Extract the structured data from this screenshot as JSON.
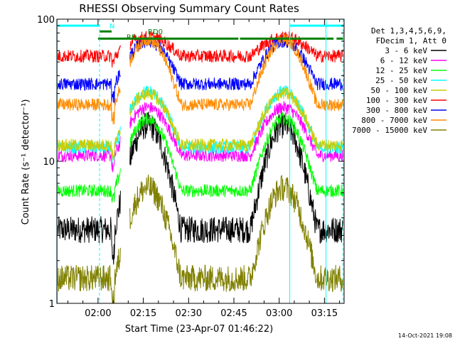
{
  "chart_data": {
    "type": "line",
    "title": "RHESSI Observing Summary Count Rates",
    "xlabel": "Start Time (23-Apr-07 01:46:22)",
    "ylabel": "Count Rate (s⁻¹ detector⁻¹)",
    "y_scale": "log",
    "ylim": [
      1,
      100
    ],
    "y_ticks": [
      {
        "value": 1,
        "label": "1"
      },
      {
        "value": 10,
        "label": "10"
      },
      {
        "value": 100,
        "label": "100"
      }
    ],
    "xlim_minutes": [
      106.37,
      201.5
    ],
    "x_ticks": [
      {
        "minute": 120,
        "label": "02:00"
      },
      {
        "minute": 135,
        "label": "02:15"
      },
      {
        "minute": 150,
        "label": "02:30"
      },
      {
        "minute": 165,
        "label": "02:45"
      },
      {
        "minute": 180,
        "label": "03:00"
      },
      {
        "minute": 195,
        "label": "03:15"
      }
    ],
    "legend_header": [
      "Det 1,3,4,5,6,9,",
      "FDecim 1, Att 0"
    ],
    "legend_position": "right",
    "series": [
      {
        "name": "3 - 6 keV",
        "color": "#000000",
        "base": 3.3,
        "peak": 18,
        "dip": 2.2
      },
      {
        "name": "6 - 12 keV",
        "color": "#ff00ff",
        "base": 11,
        "peak": 24,
        "dip": 9
      },
      {
        "name": "12 - 25 keV",
        "color": "#00ff00",
        "base": 6.2,
        "peak": 20,
        "dip": 5.5
      },
      {
        "name": "25 - 50 keV",
        "color": "#00ffff",
        "base": 12.5,
        "peak": 31,
        "dip": 10
      },
      {
        "name": "50 - 100 keV",
        "color": "#cccc00",
        "base": 13,
        "peak": 30,
        "dip": 11
      },
      {
        "name": "100 - 300 keV",
        "color": "#ff0000",
        "base": 55,
        "peak": 75,
        "dip": 50
      },
      {
        "name": "300 - 800 keV",
        "color": "#0000ff",
        "base": 35,
        "peak": 70,
        "dip": 28
      },
      {
        "name": "800 - 7000 keV",
        "color": "#ff8c00",
        "base": 25,
        "peak": 72,
        "dip": 20
      },
      {
        "name": "7000 - 15000 keV",
        "color": "#808000",
        "base": 1.5,
        "peak": 6.5,
        "dip": 1.0
      }
    ],
    "peaks_minutes": [
      136.5,
      181.5
    ],
    "peak_halfwidth_minutes": 11,
    "saa_gap_minutes": [
      127.5,
      130.5
    ],
    "flag_bars": [
      {
        "label": "N",
        "color": "#00ffff",
        "y": 90,
        "segments": [
          [
            106.8,
            120.5
          ],
          [
            183.5,
            201.2
          ]
        ]
      },
      {
        "label": "RD0",
        "color": "#008000",
        "y": 82,
        "segments": [
          [
            120.5,
            124.5
          ]
        ]
      },
      {
        "label": "RD",
        "color": "#008000",
        "y": 73,
        "segments": [
          [
            120.0,
            166.5
          ],
          [
            167.0,
            198.0
          ],
          [
            199.0,
            201.2
          ]
        ]
      }
    ],
    "vertical_lines": [
      {
        "minute": 106.5,
        "color": "#00ffff",
        "style": "solid"
      },
      {
        "minute": 120.5,
        "color": "#00ffff",
        "style": "dashed"
      },
      {
        "minute": 183.5,
        "color": "#00ffff",
        "style": "solid"
      },
      {
        "minute": 195.5,
        "color": "#00ffff",
        "style": "solid"
      },
      {
        "minute": 201.2,
        "color": "#00ffff",
        "style": "dashed"
      }
    ],
    "footer_date": "14-Oct-2021 19:08"
  }
}
